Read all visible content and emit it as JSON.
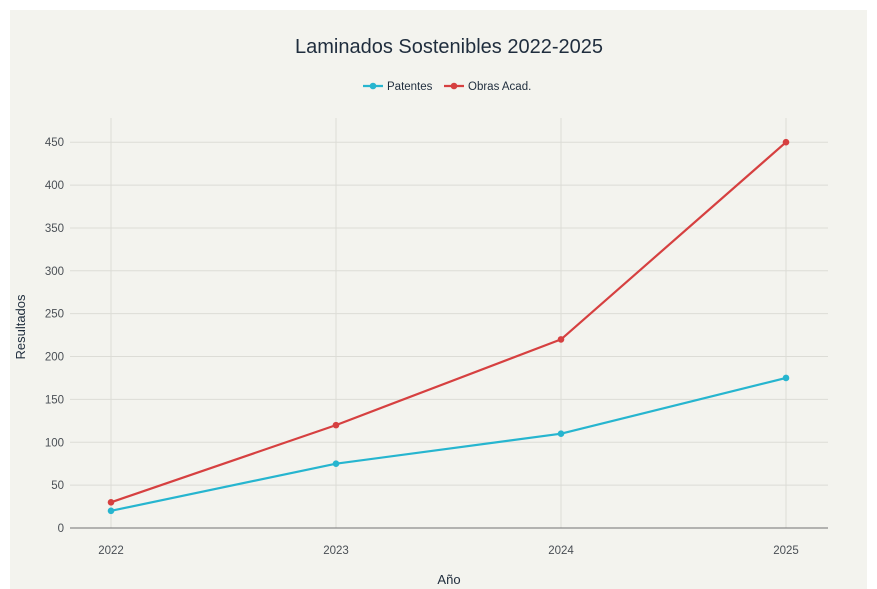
{
  "chart_data": {
    "type": "line",
    "title": "Laminados Sostenibles 2022-2025",
    "xlabel": "Año",
    "ylabel": "Resultados",
    "categories": [
      "2022",
      "2023",
      "2024",
      "2025"
    ],
    "ylim": [
      0,
      470
    ],
    "yticks": [
      0,
      50,
      100,
      150,
      200,
      250,
      300,
      350,
      400,
      450
    ],
    "grid": true,
    "legend": "top-center",
    "series": [
      {
        "name": "Patentes",
        "values": [
          20,
          75,
          110,
          175
        ],
        "color": "#26b5cf"
      },
      {
        "name": "Obras Acad.",
        "values": [
          30,
          120,
          220,
          450
        ],
        "color": "#d64040"
      }
    ]
  },
  "colors": {
    "background": "#f3f3ee",
    "grid": "#dcdcd6",
    "axis": "#8a8a8a",
    "text": "#1f2d3d"
  }
}
